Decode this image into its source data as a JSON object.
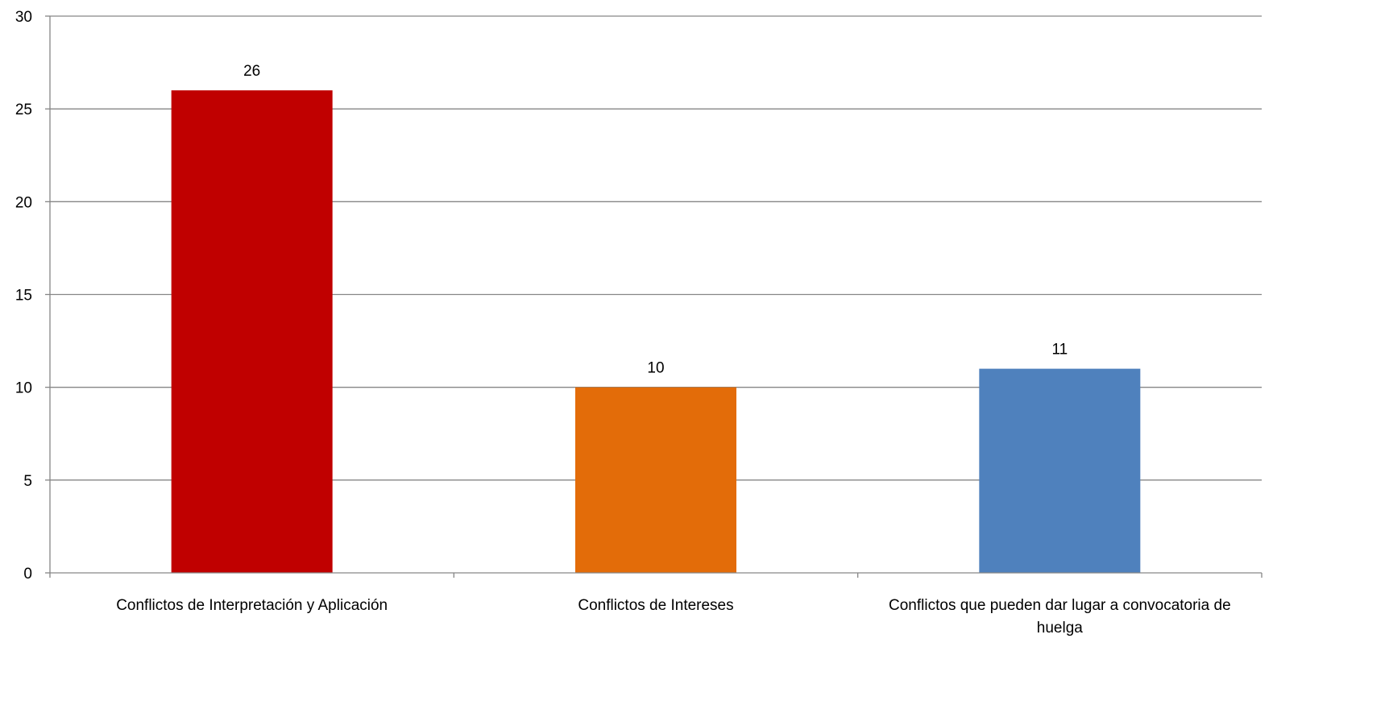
{
  "chart_data": {
    "type": "bar",
    "title": "",
    "xlabel": "",
    "ylabel": "",
    "categories": [
      [
        "Conflictos de Interpretación y Aplicación"
      ],
      [
        "Conflictos de Intereses"
      ],
      [
        "Conflictos que pueden dar lugar a convocatoria de",
        "huelga"
      ]
    ],
    "values": [
      26,
      10,
      11
    ],
    "data_labels": [
      "26",
      "10",
      "11"
    ],
    "colors": [
      "#C00000",
      "#E36C09",
      "#4F81BD"
    ],
    "ylim": [
      0,
      30
    ],
    "yticks": [
      0,
      5,
      10,
      15,
      20,
      25,
      30
    ],
    "grid": true,
    "legend": "none"
  }
}
